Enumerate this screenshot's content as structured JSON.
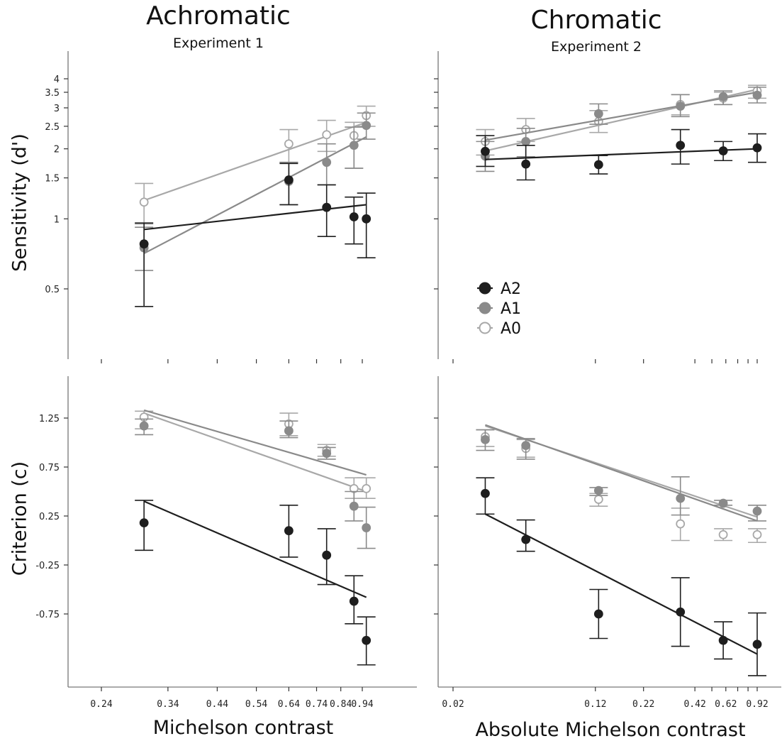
{
  "columns": [
    {
      "title": "Achromatic",
      "subtitle": "Experiment 1"
    },
    {
      "title": "Chromatic",
      "subtitle": "Experiment 2"
    }
  ],
  "legend": {
    "position": "lower-left of top-right panel",
    "entries": [
      {
        "label": "A2",
        "fill": "#1e1e1e",
        "stroke": "#1e1e1e",
        "open": false
      },
      {
        "label": "A1",
        "fill": "#8a8a8a",
        "stroke": "#8a8a8a",
        "open": false
      },
      {
        "label": "A0",
        "fill": "#ffffff",
        "stroke": "#a8a8a8",
        "open": true
      }
    ]
  },
  "colors": {
    "A2": "#1e1e1e",
    "A1": "#8a8a8a",
    "A0": "#a8a8a8",
    "axis": "#777777"
  },
  "chart_data": [
    {
      "type": "scatter",
      "panel": "top-left",
      "xlabel": "",
      "ylabel": "Sensitivity (d')",
      "yscale": "log",
      "yticks": [
        0.5,
        1,
        1.5,
        2,
        2.5,
        3,
        3.5,
        4
      ],
      "ytick_labels": [
        "0.5",
        "1",
        "1.5",
        "2",
        "2.5",
        "3",
        "3.5",
        "4"
      ],
      "xscale": "log",
      "xticks": [
        0.24,
        0.34,
        0.44,
        0.54,
        0.64,
        0.74,
        0.84,
        0.94
      ],
      "grid": false,
      "series": [
        {
          "name": "A2",
          "x": [
            0.3,
            0.64,
            0.78,
            0.9,
            0.96
          ],
          "y": [
            0.78,
            1.47,
            1.12,
            1.02,
            1.0
          ],
          "err_low": [
            0.42,
            1.15,
            0.84,
            0.78,
            0.68
          ],
          "err_high": [
            0.96,
            1.73,
            1.4,
            1.24,
            1.29
          ],
          "fit": {
            "x": [
              0.3,
              0.96
            ],
            "y": [
              0.9,
              1.15
            ]
          }
        },
        {
          "name": "A1",
          "x": [
            0.3,
            0.64,
            0.78,
            0.9,
            0.96
          ],
          "y": [
            0.75,
            1.45,
            1.75,
            2.07,
            2.52
          ],
          "err_low": [
            0.6,
            1.15,
            1.4,
            1.65,
            2.2
          ],
          "err_high": [
            0.92,
            1.75,
            2.1,
            2.48,
            2.85
          ],
          "fit": {
            "x": [
              0.3,
              0.96
            ],
            "y": [
              0.71,
              2.25
            ]
          }
        },
        {
          "name": "A0",
          "x": [
            0.3,
            0.64,
            0.78,
            0.9,
            0.96
          ],
          "y": [
            1.18,
            2.1,
            2.3,
            2.28,
            2.78
          ],
          "err_low": [
            0.95,
            1.75,
            1.95,
            1.65,
            2.5
          ],
          "err_high": [
            1.42,
            2.42,
            2.65,
            2.6,
            3.05
          ],
          "fit": {
            "x": [
              0.3,
              0.96
            ],
            "y": [
              1.2,
              2.6
            ]
          }
        }
      ]
    },
    {
      "type": "scatter",
      "panel": "top-right",
      "xlabel": "",
      "ylabel": "",
      "yscale": "log",
      "yticks": [
        0.5,
        1,
        1.5,
        2,
        2.5,
        3,
        3.5,
        4
      ],
      "xscale": "log",
      "xticks": [
        0.02,
        0.12,
        0.22,
        0.42,
        0.62,
        0.92
      ],
      "grid": false,
      "series": [
        {
          "name": "A2",
          "x": [
            0.03,
            0.05,
            0.125,
            0.35,
            0.6,
            0.92
          ],
          "y": [
            1.95,
            1.72,
            1.71,
            2.07,
            1.96,
            2.02
          ],
          "err_low": [
            1.68,
            1.47,
            1.56,
            1.72,
            1.78,
            1.75
          ],
          "err_high": [
            2.28,
            2.07,
            1.87,
            2.42,
            2.15,
            2.32
          ],
          "fit": {
            "x": [
              0.03,
              0.92
            ],
            "y": [
              1.8,
              2.0
            ]
          }
        },
        {
          "name": "A1",
          "x": [
            0.03,
            0.05,
            0.125,
            0.35,
            0.6,
            0.92
          ],
          "y": [
            1.86,
            2.15,
            2.83,
            3.05,
            3.35,
            3.4
          ],
          "err_low": [
            1.6,
            1.85,
            2.55,
            2.75,
            3.1,
            3.15
          ],
          "err_high": [
            2.15,
            2.45,
            3.12,
            3.42,
            3.55,
            3.68
          ],
          "fit": {
            "x": [
              0.03,
              0.92
            ],
            "y": [
              2.18,
              3.5
            ]
          }
        },
        {
          "name": "A0",
          "x": [
            0.03,
            0.05,
            0.125,
            0.35,
            0.6,
            0.92
          ],
          "y": [
            2.15,
            2.42,
            2.62,
            3.1,
            3.3,
            3.55
          ],
          "err_low": [
            1.88,
            2.15,
            2.35,
            2.8,
            3.1,
            3.3
          ],
          "err_high": [
            2.42,
            2.7,
            2.92,
            3.42,
            3.5,
            3.75
          ],
          "fit": {
            "x": [
              0.03,
              0.92
            ],
            "y": [
              1.96,
              3.6
            ]
          }
        }
      ]
    },
    {
      "type": "scatter",
      "panel": "bottom-left",
      "xlabel": "Michelson contrast",
      "ylabel": "Criterion (c)",
      "yscale": "linear",
      "yticks": [
        -0.75,
        -0.25,
        0.25,
        0.75,
        1.25
      ],
      "ytick_labels": [
        "-0.75",
        "-0.25",
        "0.25",
        "0.75",
        "1.25"
      ],
      "xscale": "log",
      "xticks": [
        0.24,
        0.34,
        0.44,
        0.54,
        0.64,
        0.74,
        0.84,
        0.94
      ],
      "xtick_labels": [
        "0.24",
        "0.34",
        "0.44",
        "0.54",
        "0.64",
        "0.74",
        "0.84",
        "0.94"
      ],
      "grid": false,
      "series": [
        {
          "name": "A2",
          "x": [
            0.3,
            0.64,
            0.78,
            0.9,
            0.96
          ],
          "y": [
            0.18,
            0.1,
            -0.15,
            -0.62,
            -1.02
          ],
          "err_low": [
            -0.1,
            -0.17,
            -0.45,
            -0.85,
            -1.27
          ],
          "err_high": [
            0.41,
            0.36,
            0.12,
            -0.36,
            -0.78
          ],
          "fit": {
            "x": [
              0.3,
              0.96
            ],
            "y": [
              0.4,
              -0.58
            ]
          }
        },
        {
          "name": "A1",
          "x": [
            0.3,
            0.64,
            0.78,
            0.9,
            0.96
          ],
          "y": [
            1.17,
            1.12,
            0.89,
            0.35,
            0.13
          ],
          "err_low": [
            1.08,
            1.05,
            0.83,
            0.2,
            -0.08
          ],
          "err_high": [
            1.24,
            1.22,
            0.95,
            0.5,
            0.34
          ],
          "fit": {
            "x": [
              0.3,
              0.96
            ],
            "y": [
              1.33,
              0.67
            ]
          }
        },
        {
          "name": "A0",
          "x": [
            0.3,
            0.64,
            0.78,
            0.9,
            0.96
          ],
          "y": [
            1.26,
            1.19,
            0.92,
            0.53,
            0.53
          ],
          "err_low": [
            1.14,
            1.07,
            0.86,
            0.43,
            0.43
          ],
          "err_high": [
            1.32,
            1.3,
            0.98,
            0.64,
            0.64
          ],
          "fit": {
            "x": [
              0.3,
              0.96
            ],
            "y": [
              1.3,
              0.5
            ]
          }
        }
      ]
    },
    {
      "type": "scatter",
      "panel": "bottom-right",
      "xlabel": "Absolute Michelson contrast",
      "ylabel": "",
      "yscale": "linear",
      "yticks": [
        -0.75,
        -0.25,
        0.25,
        0.75,
        1.25
      ],
      "xscale": "log",
      "xticks": [
        0.02,
        0.12,
        0.22,
        0.42,
        0.62,
        0.92
      ],
      "xtick_labels": [
        "0.02",
        "0.12",
        "0.22",
        "0.42",
        "0.62",
        "0.92"
      ],
      "grid": false,
      "series": [
        {
          "name": "A2",
          "x": [
            0.03,
            0.05,
            0.125,
            0.35,
            0.6,
            0.92
          ],
          "y": [
            0.48,
            0.01,
            -0.75,
            -0.73,
            -1.02,
            -1.06
          ],
          "err_low": [
            0.27,
            -0.11,
            -1.0,
            -1.08,
            -1.21,
            -1.38
          ],
          "err_high": [
            0.64,
            0.21,
            -0.5,
            -0.38,
            -0.83,
            -0.74
          ],
          "fit": {
            "x": [
              0.03,
              0.92
            ],
            "y": [
              0.27,
              -1.16
            ]
          }
        },
        {
          "name": "A1",
          "x": [
            0.03,
            0.05,
            0.125,
            0.35,
            0.6,
            0.92
          ],
          "y": [
            1.03,
            0.97,
            0.51,
            0.43,
            0.38,
            0.3
          ],
          "err_low": [
            0.92,
            0.83,
            0.46,
            0.26,
            0.36,
            0.2
          ],
          "err_high": [
            1.13,
            1.04,
            0.54,
            0.65,
            0.41,
            0.36
          ],
          "fit": {
            "x": [
              0.03,
              0.92
            ],
            "y": [
              1.18,
              0.2
            ]
          }
        },
        {
          "name": "A0",
          "x": [
            0.03,
            0.05,
            0.125,
            0.35,
            0.6,
            0.92
          ],
          "y": [
            1.06,
            0.94,
            0.42,
            0.17,
            0.06,
            0.06
          ],
          "err_low": [
            0.96,
            0.85,
            0.35,
            0.0,
            0.0,
            -0.02
          ],
          "err_high": [
            1.13,
            1.03,
            0.48,
            0.33,
            0.12,
            0.12
          ],
          "fit": {
            "x": [
              0.03,
              0.92
            ],
            "y": [
              1.17,
              0.24
            ]
          }
        }
      ]
    }
  ]
}
